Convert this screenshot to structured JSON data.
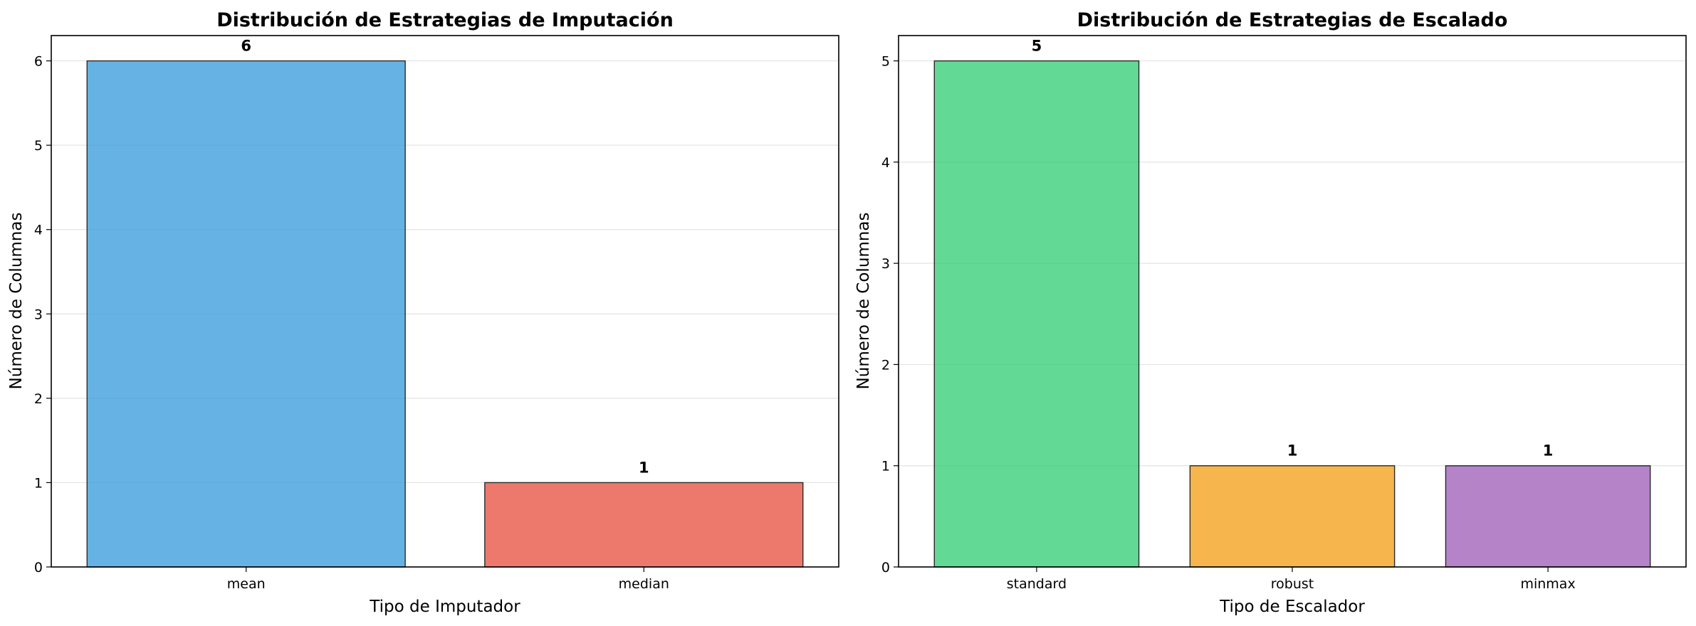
{
  "chart_data": [
    {
      "type": "bar",
      "title": "Distribución de Estrategias de Imputación",
      "xlabel": "Tipo de Imputador",
      "ylabel": "Número de Columnas",
      "categories": [
        "mean",
        "median"
      ],
      "values": [
        6,
        1
      ],
      "colors": [
        "#3498db",
        "#e74c3c"
      ],
      "ylim": [
        0,
        6.3
      ],
      "yticks": [
        0,
        1,
        2,
        3,
        4,
        5,
        6
      ],
      "grid": "y-axis"
    },
    {
      "type": "bar",
      "title": "Distribución de Estrategias de Escalado",
      "xlabel": "Tipo de Escalador",
      "ylabel": "Número de Columnas",
      "categories": [
        "standard",
        "robust",
        "minmax"
      ],
      "values": [
        5,
        1,
        1
      ],
      "colors": [
        "#2ecc71",
        "#f39c12",
        "#9b59b6"
      ],
      "ylim": [
        0,
        5.25
      ],
      "yticks": [
        0,
        1,
        2,
        3,
        4,
        5
      ],
      "grid": "y-axis"
    }
  ]
}
